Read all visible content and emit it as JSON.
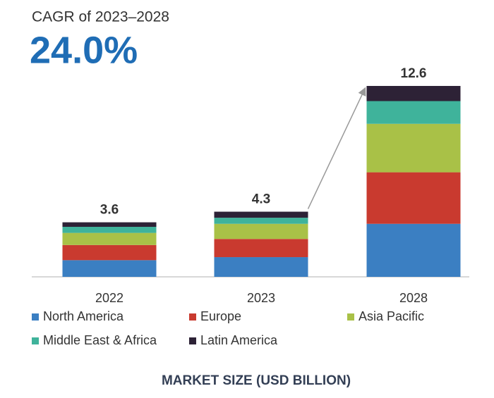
{
  "chart_data": {
    "type": "stacked_bar",
    "title": "CAGR of 2023–2028",
    "subtitle": "24.0%",
    "xlabel": "MARKET SIZE (USD BILLION)",
    "categories": [
      "2022",
      "2023",
      "2028"
    ],
    "totals": [
      3.6,
      4.3,
      12.6
    ],
    "series": [
      {
        "name": "North America",
        "color": "#3b7fc2",
        "values": [
          1.1,
          1.3,
          3.5
        ]
      },
      {
        "name": "Europe",
        "color": "#c93a2f",
        "values": [
          1.0,
          1.2,
          3.4
        ]
      },
      {
        "name": "Asia Pacific",
        "color": "#a9c147",
        "values": [
          0.8,
          1.0,
          3.2
        ]
      },
      {
        "name": "Middle East & Africa",
        "color": "#3fb39b",
        "values": [
          0.4,
          0.4,
          1.5
        ]
      },
      {
        "name": "Latin America",
        "color": "#2d2236",
        "values": [
          0.3,
          0.4,
          1.0
        ]
      }
    ],
    "legend": "bottom"
  }
}
